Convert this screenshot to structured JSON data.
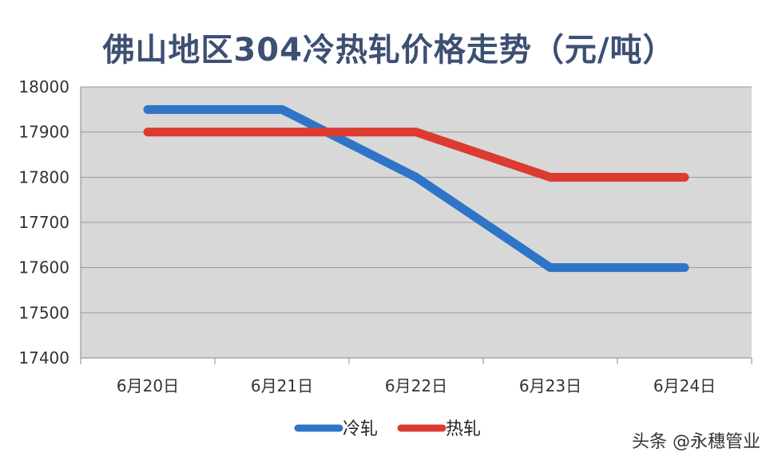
{
  "chart_data": {
    "type": "line",
    "title": "佛山地区304冷热轧价格走势（元/吨）",
    "categories": [
      "6月20日",
      "6月21日",
      "6月22日",
      "6月23日",
      "6月24日"
    ],
    "series": [
      {
        "name": "冷轧",
        "values": [
          17950,
          17950,
          17800,
          17600,
          17600
        ],
        "color": "#2e75c8"
      },
      {
        "name": "热轧",
        "values": [
          17900,
          17900,
          17900,
          17800,
          17800
        ],
        "color": "#dc3b32"
      }
    ],
    "ylim": [
      17400,
      18000
    ],
    "yticks": [
      17400,
      17500,
      17600,
      17700,
      17800,
      17900,
      18000
    ],
    "grid": true,
    "legend_position": "bottom",
    "plot_background": "#d8d8d8"
  },
  "watermark": "头条 @永穗管业"
}
